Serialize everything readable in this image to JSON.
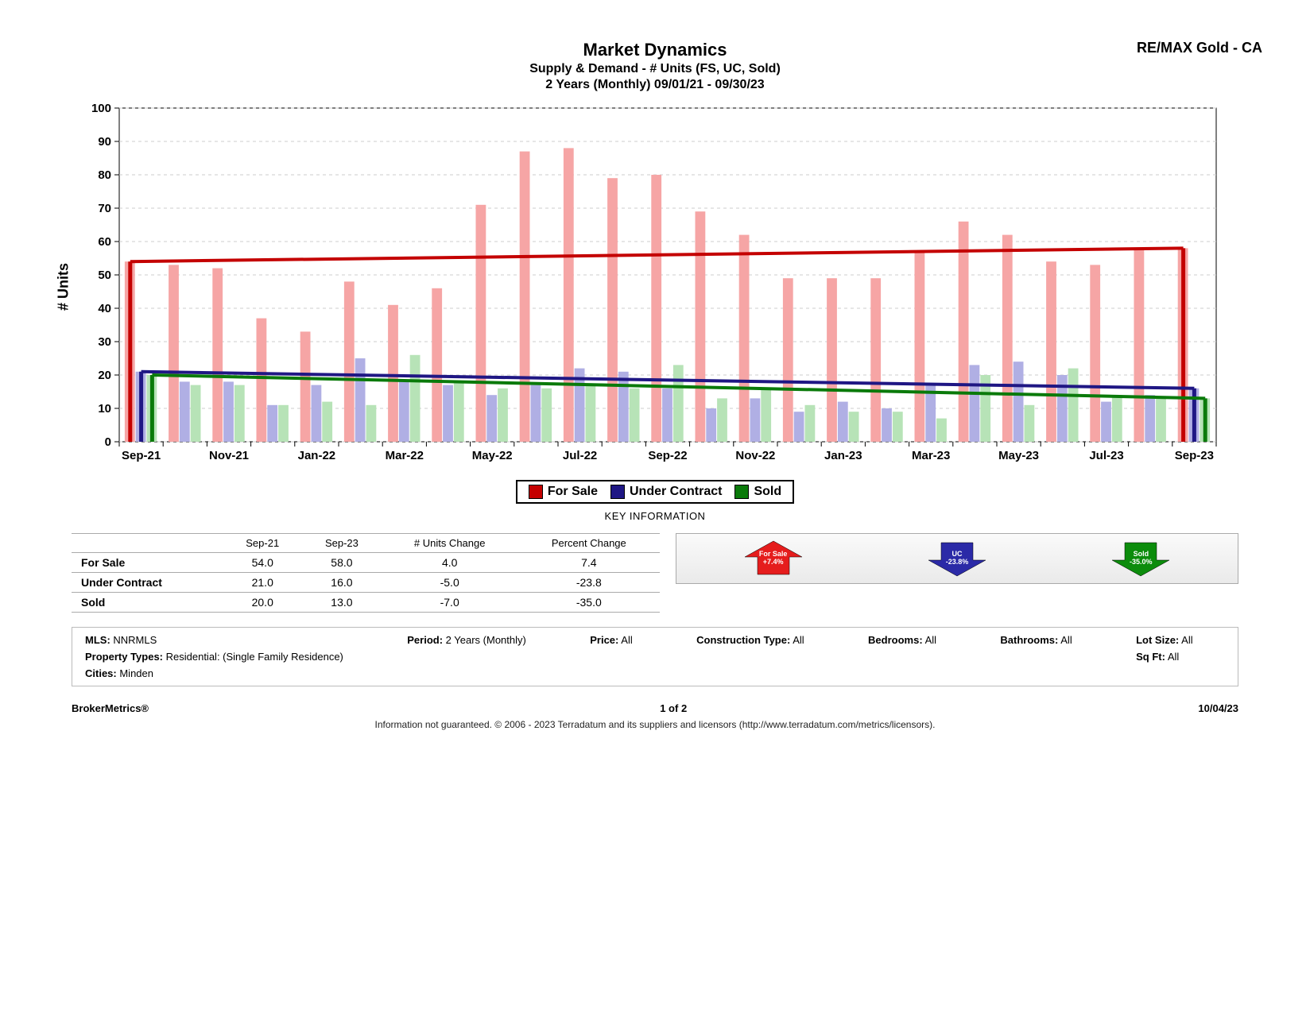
{
  "brand": "RE/MAX Gold - CA",
  "title": {
    "main": "Market Dynamics",
    "sub1": "Supply & Demand - # Units (FS, UC, Sold)",
    "sub2": "2 Years (Monthly) 09/01/21 - 09/30/23"
  },
  "chart": {
    "type": "bar+line",
    "y_label": "# Units",
    "ylim": [
      0,
      100
    ],
    "ytick_step": 10,
    "grid_color": "#cccccc",
    "bg_color": "#ffffff",
    "axis_font_size": 15,
    "categories": [
      "Sep-21",
      "Oct-21",
      "Nov-21",
      "Dec-21",
      "Jan-22",
      "Feb-22",
      "Mar-22",
      "Apr-22",
      "May-22",
      "Jun-22",
      "Jul-22",
      "Aug-22",
      "Sep-22",
      "Oct-22",
      "Nov-22",
      "Dec-22",
      "Jan-23",
      "Feb-23",
      "Mar-23",
      "Apr-23",
      "May-23",
      "Jun-23",
      "Jul-23",
      "Aug-23",
      "Sep-23"
    ],
    "x_labels_shown": [
      "Sep-21",
      "Nov-21",
      "Jan-22",
      "Mar-22",
      "May-22",
      "Jul-22",
      "Sep-22",
      "Nov-22",
      "Jan-23",
      "Mar-23",
      "May-23",
      "Jul-23",
      "Sep-23"
    ],
    "series": {
      "for_sale": {
        "label": "For Sale",
        "bar_color": "#f6a5a5",
        "trend_color": "#c40000",
        "values": [
          54,
          53,
          52,
          37,
          33,
          48,
          41,
          46,
          71,
          87,
          88,
          79,
          80,
          69,
          62,
          49,
          49,
          49,
          57,
          66,
          62,
          54,
          53,
          58,
          58
        ]
      },
      "under_contract": {
        "label": "Under Contract",
        "bar_color": "#b0afe4",
        "trend_color": "#1f1784",
        "values": [
          21,
          18,
          18,
          11,
          17,
          25,
          18,
          17,
          14,
          17,
          22,
          21,
          16,
          10,
          13,
          9,
          12,
          10,
          17,
          23,
          24,
          20,
          12,
          14,
          16
        ]
      },
      "sold": {
        "label": "Sold",
        "bar_color": "#b7e3b7",
        "trend_color": "#0a7a0a",
        "values": [
          20,
          17,
          17,
          11,
          12,
          11,
          26,
          18,
          16,
          16,
          17,
          16,
          23,
          13,
          16,
          11,
          9,
          9,
          7,
          20,
          11,
          22,
          14,
          13,
          13
        ]
      }
    },
    "trend_lines": {
      "for_sale": {
        "start": 54,
        "end": 58,
        "start_anchor": 54,
        "end_anchor": 58
      },
      "under_contract": {
        "start": 21,
        "end": 16,
        "start_anchor": 21,
        "end_anchor": 16
      },
      "sold": {
        "start": 20,
        "end": 13,
        "start_anchor": 20,
        "end_anchor": 13
      }
    },
    "bar_group_width": 0.75
  },
  "legend": [
    {
      "label": "For Sale",
      "color": "#c40000"
    },
    {
      "label": "Under Contract",
      "color": "#1f1784"
    },
    {
      "label": "Sold",
      "color": "#0a7a0a"
    }
  ],
  "key_info_label": "KEY INFORMATION",
  "key_table": {
    "columns": [
      "",
      "Sep-21",
      "Sep-23",
      "# Units Change",
      "Percent Change"
    ],
    "rows": [
      [
        "For Sale",
        "54.0",
        "58.0",
        "4.0",
        "7.4"
      ],
      [
        "Under Contract",
        "21.0",
        "16.0",
        "-5.0",
        "-23.8"
      ],
      [
        "Sold",
        "20.0",
        "13.0",
        "-7.0",
        "-35.0"
      ]
    ]
  },
  "arrows": [
    {
      "label": "For Sale",
      "pct": "+7.4%",
      "dir": "up",
      "color": "#e51d1d"
    },
    {
      "label": "UC",
      "pct": "-23.8%",
      "dir": "down",
      "color": "#2b2aa7"
    },
    {
      "label": "Sold",
      "pct": "-35.0%",
      "dir": "down",
      "color": "#0c8c0c"
    }
  ],
  "filters": {
    "MLS": "NNRMLS",
    "Period": "2 Years (Monthly)",
    "Price": "All",
    "Construction Type": "All",
    "Bedrooms": "All",
    "Bathrooms": "All",
    "Lot Size": "All",
    "Property Types": "Residential: (Single Family Residence)",
    "Sq Ft": "All",
    "Cities": "Minden"
  },
  "footer": {
    "left": "BrokerMetrics®",
    "center": "1 of 2",
    "right": "10/04/23",
    "disclaimer": "Information not guaranteed. © 2006 - 2023 Terradatum and its suppliers and licensors (http://www.terradatum.com/metrics/licensors)."
  }
}
